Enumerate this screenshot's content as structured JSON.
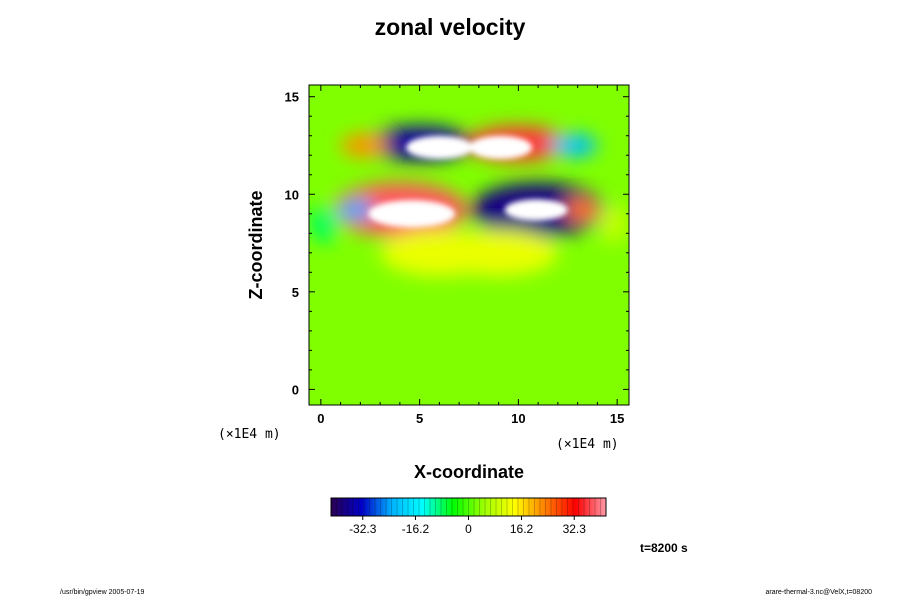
{
  "chart_data": {
    "type": "heatmap",
    "title": "zonal velocity",
    "xlabel": "X-coordinate",
    "ylabel": "Z-coordinate",
    "x_unit": "(×1E4 m)",
    "x_unit_right": "(×1E4 m)",
    "xlim": [
      -0.6,
      15.6
    ],
    "ylim": [
      -0.8,
      15.6
    ],
    "x_ticks": [
      0,
      5,
      10,
      15
    ],
    "y_ticks": [
      0,
      5,
      10,
      15
    ],
    "grid": false,
    "colorbar": {
      "min": -42,
      "max": 42,
      "tick_values": [
        -32.3,
        -16.2,
        0,
        16.2,
        32.3
      ],
      "tick_labels": [
        "-32.3",
        "-16.2",
        "0",
        "16.2",
        "32.3"
      ],
      "colormap": [
        "#2a0050",
        "#0000c8",
        "#00b4ff",
        "#00ffff",
        "#00ff00",
        "#9cff00",
        "#ffff00",
        "#ff8000",
        "#ff0000",
        "#ff9aa8"
      ]
    },
    "background_value": 3,
    "features": [
      {
        "x": 4.0,
        "z": 9.2,
        "value": 38,
        "rx": 3.4,
        "rz": 1.4
      },
      {
        "x": 11.0,
        "z": 9.2,
        "value": -38,
        "rx": 3.4,
        "rz": 1.4
      },
      {
        "x": 5.0,
        "z": 12.6,
        "value": -36,
        "rx": 2.6,
        "rz": 0.9
      },
      {
        "x": 10.0,
        "z": 12.6,
        "value": 36,
        "rx": 2.6,
        "rz": 0.9
      },
      {
        "x": 1.8,
        "z": 9.2,
        "value": -24,
        "rx": 0.9,
        "rz": 0.6
      },
      {
        "x": 13.2,
        "z": 9.2,
        "value": 24,
        "rx": 0.9,
        "rz": 0.6
      },
      {
        "x": 2.2,
        "z": 12.5,
        "value": 22,
        "rx": 1.2,
        "rz": 0.6
      },
      {
        "x": 12.8,
        "z": 12.5,
        "value": -22,
        "rx": 1.2,
        "rz": 0.6
      },
      {
        "x": 6.0,
        "z": 7.0,
        "value": 12,
        "rx": 3.0,
        "rz": 1.2
      },
      {
        "x": 9.0,
        "z": 7.0,
        "value": 12,
        "rx": 3.0,
        "rz": 1.2
      },
      {
        "x": 0.2,
        "z": 8.5,
        "value": -8,
        "rx": 0.8,
        "rz": 1.0
      },
      {
        "x": 14.8,
        "z": 8.5,
        "value": 8,
        "rx": 0.8,
        "rz": 1.0
      }
    ],
    "saturated_regions": [
      {
        "x": 4.6,
        "z": 9.0,
        "rx": 2.2,
        "rz": 0.7
      },
      {
        "x": 10.9,
        "z": 9.2,
        "rx": 1.6,
        "rz": 0.55
      },
      {
        "x": 6.0,
        "z": 12.4,
        "rx": 1.7,
        "rz": 0.6
      },
      {
        "x": 9.1,
        "z": 12.4,
        "rx": 1.6,
        "rz": 0.6
      }
    ]
  },
  "footer": {
    "left": "/usr/bin/gpview 2005-07-19",
    "right": "arare-thermal-3.nc@VelX,t=08200",
    "time_label": "t=8200 s"
  }
}
